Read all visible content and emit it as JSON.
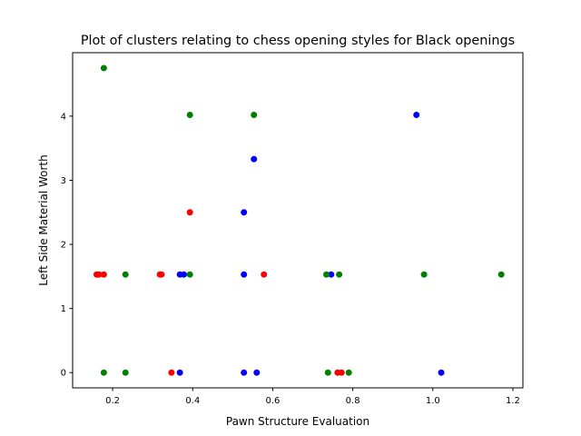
{
  "chart_data": {
    "type": "scatter",
    "title": "Plot of clusters relating to chess opening styles for Black openings",
    "xlabel": "Pawn Structure Evaluation",
    "ylabel": "Left Side Material Worth",
    "xlim": [
      0.1,
      1.225
    ],
    "ylim": [
      -0.238,
      4.99
    ],
    "xticks": [
      0.2,
      0.4,
      0.6,
      0.8,
      1.0,
      1.2
    ],
    "xtick_labels": [
      "0.2",
      "0.4",
      "0.6",
      "0.8",
      "1.0",
      "1.2"
    ],
    "yticks": [
      0,
      1,
      2,
      3,
      4
    ],
    "ytick_labels": [
      "0",
      "1",
      "2",
      "3",
      "4"
    ],
    "grid": false,
    "legend": "none",
    "series": [
      {
        "color": "#0000ff",
        "points": [
          [
            0.959,
            4.02
          ],
          [
            0.553,
            3.33
          ],
          [
            0.528,
            2.5
          ],
          [
            0.528,
            1.53
          ],
          [
            0.368,
            1.53
          ],
          [
            0.378,
            1.53
          ],
          [
            0.746,
            1.53
          ],
          [
            0.368,
            0.0
          ],
          [
            0.528,
            0.0
          ],
          [
            0.56,
            0.0
          ],
          [
            1.021,
            0.0
          ]
        ]
      },
      {
        "color": "#ff0000",
        "points": [
          [
            0.393,
            2.5
          ],
          [
            0.16,
            1.53
          ],
          [
            0.166,
            1.53
          ],
          [
            0.178,
            1.53
          ],
          [
            0.318,
            1.53
          ],
          [
            0.322,
            1.53
          ],
          [
            0.578,
            1.53
          ],
          [
            0.347,
            0.0
          ],
          [
            0.762,
            0.0
          ],
          [
            0.772,
            0.0
          ]
        ]
      },
      {
        "color": "#008000",
        "points": [
          [
            0.178,
            4.75
          ],
          [
            0.393,
            4.02
          ],
          [
            0.553,
            4.02
          ],
          [
            0.232,
            1.53
          ],
          [
            0.393,
            1.53
          ],
          [
            0.734,
            1.53
          ],
          [
            0.766,
            1.53
          ],
          [
            0.978,
            1.53
          ],
          [
            1.171,
            1.53
          ],
          [
            0.178,
            0.0
          ],
          [
            0.232,
            0.0
          ],
          [
            0.738,
            0.0
          ],
          [
            0.79,
            0.0
          ]
        ]
      }
    ]
  }
}
